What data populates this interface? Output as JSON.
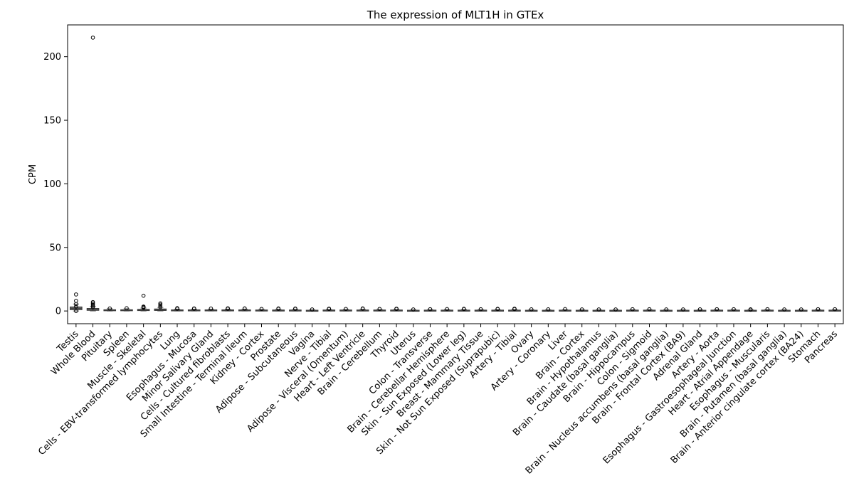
{
  "chart_data": {
    "type": "box",
    "title": "The expression of MLT1H in GTEx",
    "xlabel": "",
    "ylabel": "CPM",
    "ylim": [
      -10,
      225
    ],
    "yticks": [
      0,
      50,
      100,
      150,
      200
    ],
    "grid": false,
    "categories": [
      "Testis",
      "Whole Blood",
      "Pituitary",
      "Spleen",
      "Muscle - Skeletal",
      "Cells - EBV-transformed lymphocytes",
      "Lung",
      "Esophagus - Mucosa",
      "Minor Salivary Gland",
      "Cells - Cultured fibroblasts",
      "Small Intestine - Terminal Ileum",
      "Kidney - Cortex",
      "Prostate",
      "Adipose - Subcutaneous",
      "Vagina",
      "Nerve - Tibial",
      "Adipose - Visceral (Omentum)",
      "Heart - Left Ventricle",
      "Brain - Cerebellum",
      "Thyroid",
      "Uterus",
      "Colon - Transverse",
      "Brain - Cerebellar Hemisphere",
      "Skin - Sun Exposed (Lower leg)",
      "Breast - Mammary Tissue",
      "Skin - Not Sun Exposed (Suprapubic)",
      "Artery - Tibial",
      "Ovary",
      "Artery - Coronary",
      "Liver",
      "Brain - Cortex",
      "Brain - Hypothalamus",
      "Brain - Caudate (basal ganglia)",
      "Brain - Hippocampus",
      "Colon - Sigmoid",
      "Brain - Nucleus accumbens (basal ganglia)",
      "Brain - Frontal Cortex (BA9)",
      "Adrenal Gland",
      "Artery - Aorta",
      "Esophagus - Gastroesophageal Junction",
      "Heart - Atrial Appendage",
      "Esophagus - Muscularis",
      "Brain - Putamen (basal ganglia)",
      "Brain - Anterior cingulate cortex (BA24)",
      "Stomach",
      "Pancreas"
    ],
    "boxes": [
      {
        "q1": 1.0,
        "median": 2.0,
        "q3": 3.2,
        "whisker_low": 0.0,
        "whisker_high": 5.5,
        "outliers": [
          0.0,
          3.5,
          5.5,
          8.0,
          13.0
        ]
      },
      {
        "q1": 0.5,
        "median": 1.2,
        "q3": 2.0,
        "whisker_low": 0.0,
        "whisker_high": 3.5,
        "outliers": [
          3.0,
          4.0,
          5.0,
          6.0,
          7.0,
          215.0
        ]
      },
      {
        "q1": 0.3,
        "median": 0.6,
        "q3": 1.0,
        "whisker_low": 0.0,
        "whisker_high": 1.8,
        "outliers": [
          2.0
        ]
      },
      {
        "q1": 0.3,
        "median": 0.6,
        "q3": 1.0,
        "whisker_low": 0.0,
        "whisker_high": 1.8,
        "outliers": [
          2.2
        ]
      },
      {
        "q1": 0.3,
        "median": 0.7,
        "q3": 1.3,
        "whisker_low": 0.0,
        "whisker_high": 2.3,
        "outliers": [
          2.5,
          3.0,
          3.5,
          12.0
        ]
      },
      {
        "q1": 0.4,
        "median": 0.9,
        "q3": 1.6,
        "whisker_low": 0.0,
        "whisker_high": 2.8,
        "outliers": [
          3.0,
          4.0,
          5.0,
          6.0
        ]
      },
      {
        "q1": 0.2,
        "median": 0.5,
        "q3": 0.9,
        "whisker_low": 0.0,
        "whisker_high": 1.5,
        "outliers": [
          1.8,
          2.2
        ]
      },
      {
        "q1": 0.2,
        "median": 0.5,
        "q3": 0.9,
        "whisker_low": 0.0,
        "whisker_high": 1.5,
        "outliers": [
          1.8,
          2.0
        ]
      },
      {
        "q1": 0.2,
        "median": 0.5,
        "q3": 0.9,
        "whisker_low": 0.0,
        "whisker_high": 1.5,
        "outliers": [
          1.9
        ]
      },
      {
        "q1": 0.2,
        "median": 0.5,
        "q3": 0.9,
        "whisker_low": 0.0,
        "whisker_high": 1.5,
        "outliers": [
          1.8,
          2.1
        ]
      },
      {
        "q1": 0.2,
        "median": 0.5,
        "q3": 0.9,
        "whisker_low": 0.0,
        "whisker_high": 1.5,
        "outliers": [
          1.9,
          2.0
        ]
      },
      {
        "q1": 0.1,
        "median": 0.4,
        "q3": 0.8,
        "whisker_low": 0.0,
        "whisker_high": 1.3,
        "outliers": [
          1.6
        ]
      },
      {
        "q1": 0.1,
        "median": 0.4,
        "q3": 0.8,
        "whisker_low": 0.0,
        "whisker_high": 1.4,
        "outliers": [
          1.7,
          2.0
        ]
      },
      {
        "q1": 0.1,
        "median": 0.4,
        "q3": 0.8,
        "whisker_low": 0.0,
        "whisker_high": 1.4,
        "outliers": [
          1.7,
          1.9
        ]
      },
      {
        "q1": 0.1,
        "median": 0.3,
        "q3": 0.6,
        "whisker_low": 0.0,
        "whisker_high": 1.0,
        "outliers": [
          1.2
        ]
      },
      {
        "q1": 0.1,
        "median": 0.4,
        "q3": 0.8,
        "whisker_low": 0.0,
        "whisker_high": 1.3,
        "outliers": [
          1.6,
          1.8
        ]
      },
      {
        "q1": 0.1,
        "median": 0.4,
        "q3": 0.8,
        "whisker_low": 0.0,
        "whisker_high": 1.3,
        "outliers": [
          1.6
        ]
      },
      {
        "q1": 0.1,
        "median": 0.4,
        "q3": 0.8,
        "whisker_low": 0.0,
        "whisker_high": 1.4,
        "outliers": [
          1.8,
          2.0
        ]
      },
      {
        "q1": 0.1,
        "median": 0.4,
        "q3": 0.8,
        "whisker_low": 0.0,
        "whisker_high": 1.3,
        "outliers": [
          1.6
        ]
      },
      {
        "q1": 0.1,
        "median": 0.4,
        "q3": 0.8,
        "whisker_low": 0.0,
        "whisker_high": 1.3,
        "outliers": [
          1.6,
          1.8
        ]
      },
      {
        "q1": 0.1,
        "median": 0.3,
        "q3": 0.6,
        "whisker_low": 0.0,
        "whisker_high": 1.0,
        "outliers": [
          1.2
        ]
      },
      {
        "q1": 0.1,
        "median": 0.3,
        "q3": 0.7,
        "whisker_low": 0.0,
        "whisker_high": 1.1,
        "outliers": [
          1.4
        ]
      },
      {
        "q1": 0.1,
        "median": 0.3,
        "q3": 0.7,
        "whisker_low": 0.0,
        "whisker_high": 1.2,
        "outliers": [
          1.5
        ]
      },
      {
        "q1": 0.1,
        "median": 0.3,
        "q3": 0.7,
        "whisker_low": 0.0,
        "whisker_high": 1.2,
        "outliers": [
          1.5,
          1.7
        ]
      },
      {
        "q1": 0.1,
        "median": 0.3,
        "q3": 0.7,
        "whisker_low": 0.0,
        "whisker_high": 1.1,
        "outliers": [
          1.4
        ]
      },
      {
        "q1": 0.1,
        "median": 0.3,
        "q3": 0.7,
        "whisker_low": 0.0,
        "whisker_high": 1.2,
        "outliers": [
          1.5,
          1.7
        ]
      },
      {
        "q1": 0.1,
        "median": 0.3,
        "q3": 0.7,
        "whisker_low": 0.0,
        "whisker_high": 1.2,
        "outliers": [
          1.5,
          1.8
        ]
      },
      {
        "q1": 0.1,
        "median": 0.3,
        "q3": 0.6,
        "whisker_low": 0.0,
        "whisker_high": 1.0,
        "outliers": [
          1.3
        ]
      },
      {
        "q1": 0.1,
        "median": 0.3,
        "q3": 0.6,
        "whisker_low": 0.0,
        "whisker_high": 1.0,
        "outliers": [
          1.3
        ]
      },
      {
        "q1": 0.1,
        "median": 0.3,
        "q3": 0.7,
        "whisker_low": 0.0,
        "whisker_high": 1.1,
        "outliers": [
          1.5
        ]
      },
      {
        "q1": 0.1,
        "median": 0.3,
        "q3": 0.6,
        "whisker_low": 0.0,
        "whisker_high": 1.0,
        "outliers": [
          1.2
        ]
      },
      {
        "q1": 0.1,
        "median": 0.3,
        "q3": 0.6,
        "whisker_low": 0.0,
        "whisker_high": 1.0,
        "outliers": [
          1.2
        ]
      },
      {
        "q1": 0.1,
        "median": 0.3,
        "q3": 0.6,
        "whisker_low": 0.0,
        "whisker_high": 1.0,
        "outliers": [
          1.2
        ]
      },
      {
        "q1": 0.1,
        "median": 0.3,
        "q3": 0.7,
        "whisker_low": 0.0,
        "whisker_high": 1.1,
        "outliers": [
          1.4
        ]
      },
      {
        "q1": 0.1,
        "median": 0.3,
        "q3": 0.7,
        "whisker_low": 0.0,
        "whisker_high": 1.1,
        "outliers": [
          1.4
        ]
      },
      {
        "q1": 0.1,
        "median": 0.3,
        "q3": 0.6,
        "whisker_low": 0.0,
        "whisker_high": 1.0,
        "outliers": [
          1.2
        ]
      },
      {
        "q1": 0.1,
        "median": 0.3,
        "q3": 0.6,
        "whisker_low": 0.0,
        "whisker_high": 1.0,
        "outliers": [
          1.2
        ]
      },
      {
        "q1": 0.1,
        "median": 0.3,
        "q3": 0.6,
        "whisker_low": 0.0,
        "whisker_high": 1.0,
        "outliers": [
          1.3
        ]
      },
      {
        "q1": 0.1,
        "median": 0.3,
        "q3": 0.7,
        "whisker_low": 0.0,
        "whisker_high": 1.1,
        "outliers": [
          1.4
        ]
      },
      {
        "q1": 0.1,
        "median": 0.3,
        "q3": 0.7,
        "whisker_low": 0.0,
        "whisker_high": 1.1,
        "outliers": [
          1.4
        ]
      },
      {
        "q1": 0.1,
        "median": 0.3,
        "q3": 0.6,
        "whisker_low": 0.0,
        "whisker_high": 1.0,
        "outliers": [
          1.3,
          1.0
        ]
      },
      {
        "q1": 0.1,
        "median": 0.3,
        "q3": 0.7,
        "whisker_low": 0.0,
        "whisker_high": 1.1,
        "outliers": [
          1.4
        ]
      },
      {
        "q1": 0.1,
        "median": 0.3,
        "q3": 0.6,
        "whisker_low": 0.0,
        "whisker_high": 1.0,
        "outliers": [
          1.2
        ]
      },
      {
        "q1": 0.1,
        "median": 0.3,
        "q3": 0.6,
        "whisker_low": 0.0,
        "whisker_high": 1.0,
        "outliers": [
          1.2
        ]
      },
      {
        "q1": 0.1,
        "median": 0.3,
        "q3": 0.7,
        "whisker_low": 0.0,
        "whisker_high": 1.1,
        "outliers": [
          1.4
        ]
      },
      {
        "q1": 0.1,
        "median": 0.3,
        "q3": 0.7,
        "whisker_low": 0.0,
        "whisker_high": 1.1,
        "outliers": [
          1.4
        ]
      }
    ],
    "box_color": "#6b6b6b",
    "median_color": "#444444"
  }
}
